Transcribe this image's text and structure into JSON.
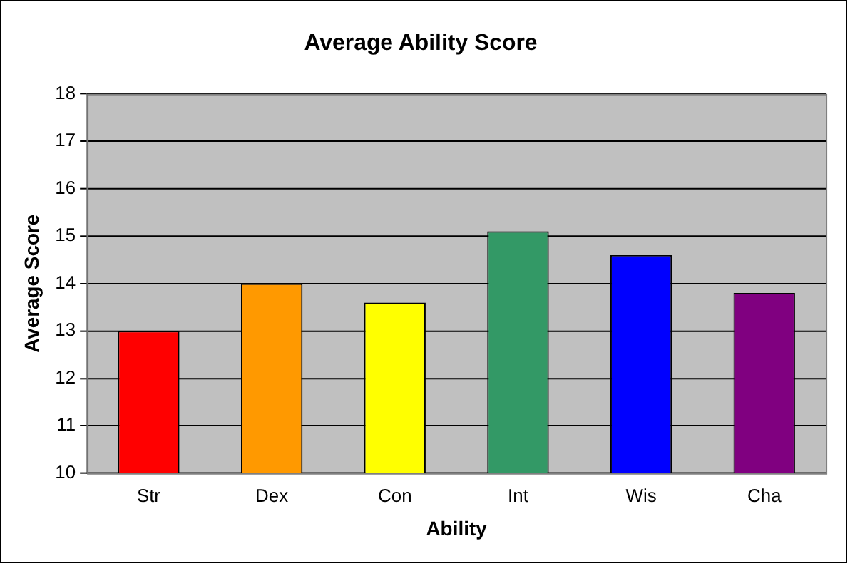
{
  "chart_data": {
    "type": "bar",
    "title": "Average Ability Score",
    "xlabel": "Ability",
    "ylabel": "Average Score",
    "categories": [
      "Str",
      "Dex",
      "Con",
      "Int",
      "Wis",
      "Cha"
    ],
    "values": [
      13.0,
      14.0,
      13.6,
      15.1,
      14.6,
      13.8
    ],
    "colors": [
      "#ff0000",
      "#ff9900",
      "#ffff00",
      "#339966",
      "#0000ff",
      "#800080"
    ],
    "ylim": [
      10,
      18
    ],
    "yticks": [
      10,
      11,
      12,
      13,
      14,
      15,
      16,
      17,
      18
    ],
    "grid": "y",
    "legend": false
  }
}
